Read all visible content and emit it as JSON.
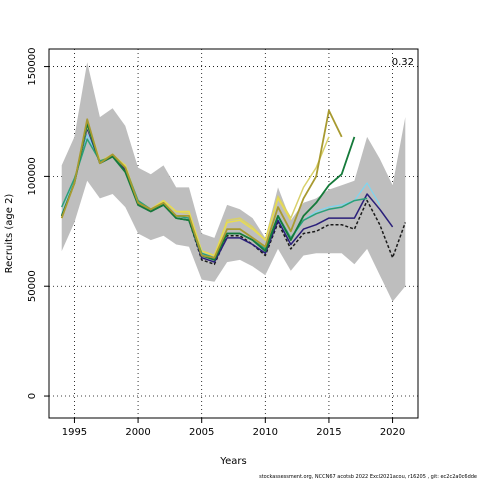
{
  "chart_data": {
    "type": "line",
    "xlabel": "Years",
    "ylabel": "Recruits (age 2)",
    "corner_value": "0.32",
    "footnote": "stockassessment.org, NCCN67 acotsb 2022 Excl2021acou, r16205 , git: ec2c2a0c6dde",
    "xlim": [
      1993,
      2022
    ],
    "ylim": [
      -10000,
      158000
    ],
    "x_ticks": [
      1995,
      2000,
      2005,
      2010,
      2015,
      2020
    ],
    "y_ticks": [
      0,
      50000,
      100000,
      150000
    ],
    "grid": "dotted",
    "band": {
      "x": [
        1994,
        1995,
        1996,
        1997,
        1998,
        1999,
        2000,
        2001,
        2002,
        2003,
        2004,
        2005,
        2006,
        2007,
        2008,
        2009,
        2010,
        2011,
        2012,
        2013,
        2014,
        2015,
        2016,
        2017,
        2018,
        2019,
        2020,
        2021
      ],
      "upper": [
        105000,
        118000,
        152000,
        127000,
        131000,
        123000,
        104000,
        101000,
        105000,
        95000,
        95000,
        74000,
        72000,
        87000,
        85000,
        81000,
        72000,
        95000,
        80000,
        88000,
        90000,
        94000,
        96000,
        98000,
        118000,
        108000,
        96000,
        127000
      ],
      "lower": [
        66000,
        79000,
        98000,
        90000,
        92000,
        86000,
        74000,
        71000,
        73000,
        69000,
        68000,
        53000,
        52000,
        61000,
        62000,
        59000,
        55000,
        67000,
        57000,
        64000,
        65000,
        65000,
        65000,
        60000,
        67000,
        55000,
        43000,
        50000
      ]
    },
    "series": [
      {
        "color": "#1a1a1a",
        "dash": "dashed",
        "width": 1.5,
        "x": [
          1994,
          1995,
          1996,
          1997,
          1998,
          1999,
          2000,
          2001,
          2002,
          2003,
          2004,
          2005,
          2006,
          2007,
          2008,
          2009,
          2010,
          2011,
          2012,
          2013,
          2014,
          2015,
          2016,
          2017,
          2018,
          2019,
          2020,
          2021
        ],
        "y": [
          82000,
          97000,
          123000,
          107000,
          109000,
          103000,
          87000,
          84000,
          87000,
          81000,
          80000,
          62000,
          60000,
          73000,
          73000,
          69000,
          64000,
          79000,
          67000,
          74000,
          75000,
          78000,
          78000,
          76000,
          89000,
          78000,
          63000,
          79000
        ]
      },
      {
        "color": "#7dd6f0",
        "dash": "solid",
        "width": 1.2,
        "x": [
          1994,
          1995,
          1996,
          1997,
          1998,
          1999,
          2000,
          2001,
          2002,
          2003,
          2004,
          2005,
          2006,
          2007,
          2008,
          2009,
          2010,
          2011,
          2012,
          2013,
          2014,
          2015,
          2016,
          2017,
          2018,
          2019
        ],
        "y": [
          83000,
          98000,
          119000,
          107000,
          109000,
          103000,
          88000,
          85000,
          88000,
          82000,
          81000,
          64000,
          63000,
          74000,
          74000,
          71000,
          67000,
          81000,
          71000,
          80000,
          84000,
          86000,
          87000,
          89000,
          97000,
          87000
        ]
      },
      {
        "color": "#2a1f7a",
        "dash": "solid",
        "width": 1.5,
        "x": [
          1994,
          1995,
          1996,
          1997,
          1998,
          1999,
          2000,
          2001,
          2002,
          2003,
          2004,
          2005,
          2006,
          2007,
          2008,
          2009,
          2010,
          2011,
          2012,
          2013,
          2014,
          2015,
          2016,
          2017,
          2018,
          2019,
          2020
        ],
        "y": [
          82000,
          97000,
          122000,
          106000,
          109000,
          103000,
          87000,
          84000,
          87000,
          81000,
          80000,
          63000,
          61000,
          72000,
          72000,
          69000,
          65000,
          80000,
          69000,
          76000,
          78000,
          81000,
          81000,
          81000,
          92000,
          85000,
          77000
        ]
      },
      {
        "color": "#d8d06a",
        "dash": "solid",
        "width": 1.5,
        "x": [
          1994,
          1995,
          1996,
          1997,
          1998,
          1999,
          2000,
          2001,
          2002,
          2003,
          2004,
          2005,
          2006,
          2007,
          2008,
          2009,
          2010,
          2011,
          2012,
          2013,
          2014,
          2015
        ],
        "y": [
          81000,
          97000,
          123000,
          107000,
          110000,
          105000,
          88000,
          85000,
          89000,
          84000,
          83000,
          66000,
          64000,
          80000,
          81000,
          77000,
          71000,
          91000,
          81000,
          95000,
          104000,
          118000
        ]
      },
      {
        "color": "#e8dc50",
        "dash": "solid",
        "width": 1.5,
        "x": [
          1994,
          1995,
          1996,
          1997,
          1998,
          1999,
          2000,
          2001,
          2002,
          2003,
          2004,
          2005,
          2006,
          2007,
          2008,
          2009,
          2010,
          2011,
          2012
        ],
        "y": [
          81000,
          97000,
          125000,
          107000,
          109000,
          105000,
          88000,
          85000,
          89000,
          84000,
          84000,
          66000,
          64000,
          79000,
          80000,
          76000,
          71000,
          90000,
          80000
        ]
      },
      {
        "color": "#2aa07a",
        "dash": "solid",
        "width": 1.5,
        "x": [
          1994,
          1995,
          1996,
          1997,
          1998,
          1999,
          2000,
          2001,
          2002,
          2003,
          2004,
          2005,
          2006,
          2007,
          2008,
          2009,
          2010,
          2011,
          2012,
          2013,
          2014,
          2015,
          2016,
          2017,
          2018
        ],
        "y": [
          86000,
          99000,
          117000,
          107000,
          109000,
          104000,
          89000,
          85000,
          87000,
          82000,
          81000,
          65000,
          63000,
          74000,
          74000,
          71000,
          67000,
          82000,
          72000,
          80000,
          83000,
          85000,
          86000,
          89000,
          90000
        ]
      },
      {
        "color": "#157a3a",
        "dash": "solid",
        "width": 1.8,
        "x": [
          1994,
          1995,
          1996,
          1997,
          1998,
          1999,
          2000,
          2001,
          2002,
          2003,
          2004,
          2005,
          2006,
          2007,
          2008,
          2009,
          2010,
          2011,
          2012,
          2013,
          2014,
          2015,
          2016,
          2017
        ],
        "y": [
          82000,
          97000,
          124000,
          106000,
          109000,
          102000,
          87000,
          84000,
          87000,
          81000,
          80000,
          64000,
          62000,
          74000,
          74000,
          71000,
          66000,
          82000,
          71000,
          82000,
          88000,
          96000,
          101000,
          118000
        ]
      },
      {
        "color": "#a89a30",
        "dash": "solid",
        "width": 1.8,
        "x": [
          1994,
          1995,
          1996,
          1997,
          1998,
          1999,
          2000,
          2001,
          2002,
          2003,
          2004,
          2005,
          2006,
          2007,
          2008,
          2009,
          2010,
          2011,
          2012,
          2013,
          2014,
          2015,
          2016
        ],
        "y": [
          81000,
          97000,
          126000,
          106000,
          110000,
          104000,
          88000,
          85000,
          88000,
          82000,
          82000,
          64000,
          63000,
          76000,
          76000,
          72000,
          68000,
          86000,
          75000,
          90000,
          100000,
          130000,
          118000
        ]
      }
    ]
  }
}
